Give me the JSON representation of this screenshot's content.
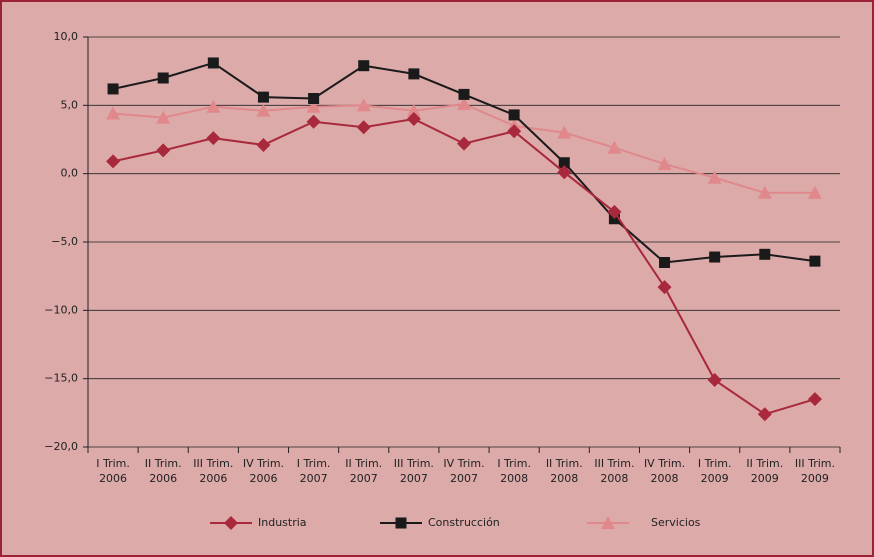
{
  "chart_data": {
    "type": "line",
    "categories": [
      [
        "I Trim.",
        "2006"
      ],
      [
        "II Trim.",
        "2006"
      ],
      [
        "III Trim.",
        "2006"
      ],
      [
        "IV Trim.",
        "2006"
      ],
      [
        "I Trim.",
        "2007"
      ],
      [
        "II Trim.",
        "2007"
      ],
      [
        "III Trim.",
        "2007"
      ],
      [
        "IV Trim.",
        "2007"
      ],
      [
        "I Trim.",
        "2008"
      ],
      [
        "II Trim.",
        "2008"
      ],
      [
        "III Trim.",
        "2008"
      ],
      [
        "IV Trim.",
        "2008"
      ],
      [
        "I Trim.",
        "2009"
      ],
      [
        "II Trim.",
        "2009"
      ],
      [
        "III Trim.",
        "2009"
      ]
    ],
    "series": [
      {
        "name": "Industria",
        "color": "#a8283c",
        "marker": "diamond",
        "values": [
          0.9,
          1.7,
          2.6,
          2.1,
          3.8,
          3.4,
          4.0,
          2.2,
          3.1,
          0.1,
          -2.8,
          -8.3,
          -15.1,
          -17.6,
          -16.5
        ]
      },
      {
        "name": "Construcción",
        "color": "#1a1a1a",
        "marker": "square",
        "values": [
          6.2,
          7.0,
          8.1,
          5.6,
          5.5,
          7.9,
          7.3,
          5.8,
          4.3,
          0.8,
          -3.3,
          -6.5,
          -6.1,
          -5.9,
          -6.4
        ]
      },
      {
        "name": "Servicios",
        "color": "#e0888c",
        "marker": "triangle",
        "values": [
          4.4,
          4.1,
          4.9,
          4.6,
          4.9,
          5.0,
          4.6,
          5.1,
          3.5,
          3.0,
          1.9,
          0.7,
          -0.3,
          -1.4,
          -1.4
        ]
      }
    ],
    "ylim": [
      -20,
      10
    ],
    "yticks": [
      {
        "value": -20,
        "label": "−20,0"
      },
      {
        "value": -15,
        "label": "−15,0"
      },
      {
        "value": -10,
        "label": "−10,0"
      },
      {
        "value": -5,
        "label": "−5,0"
      },
      {
        "value": 0,
        "label": "0,0"
      },
      {
        "value": 5,
        "label": "5,0"
      },
      {
        "value": 10,
        "label": "10,0"
      }
    ],
    "grid": true,
    "legend": "bottom"
  }
}
